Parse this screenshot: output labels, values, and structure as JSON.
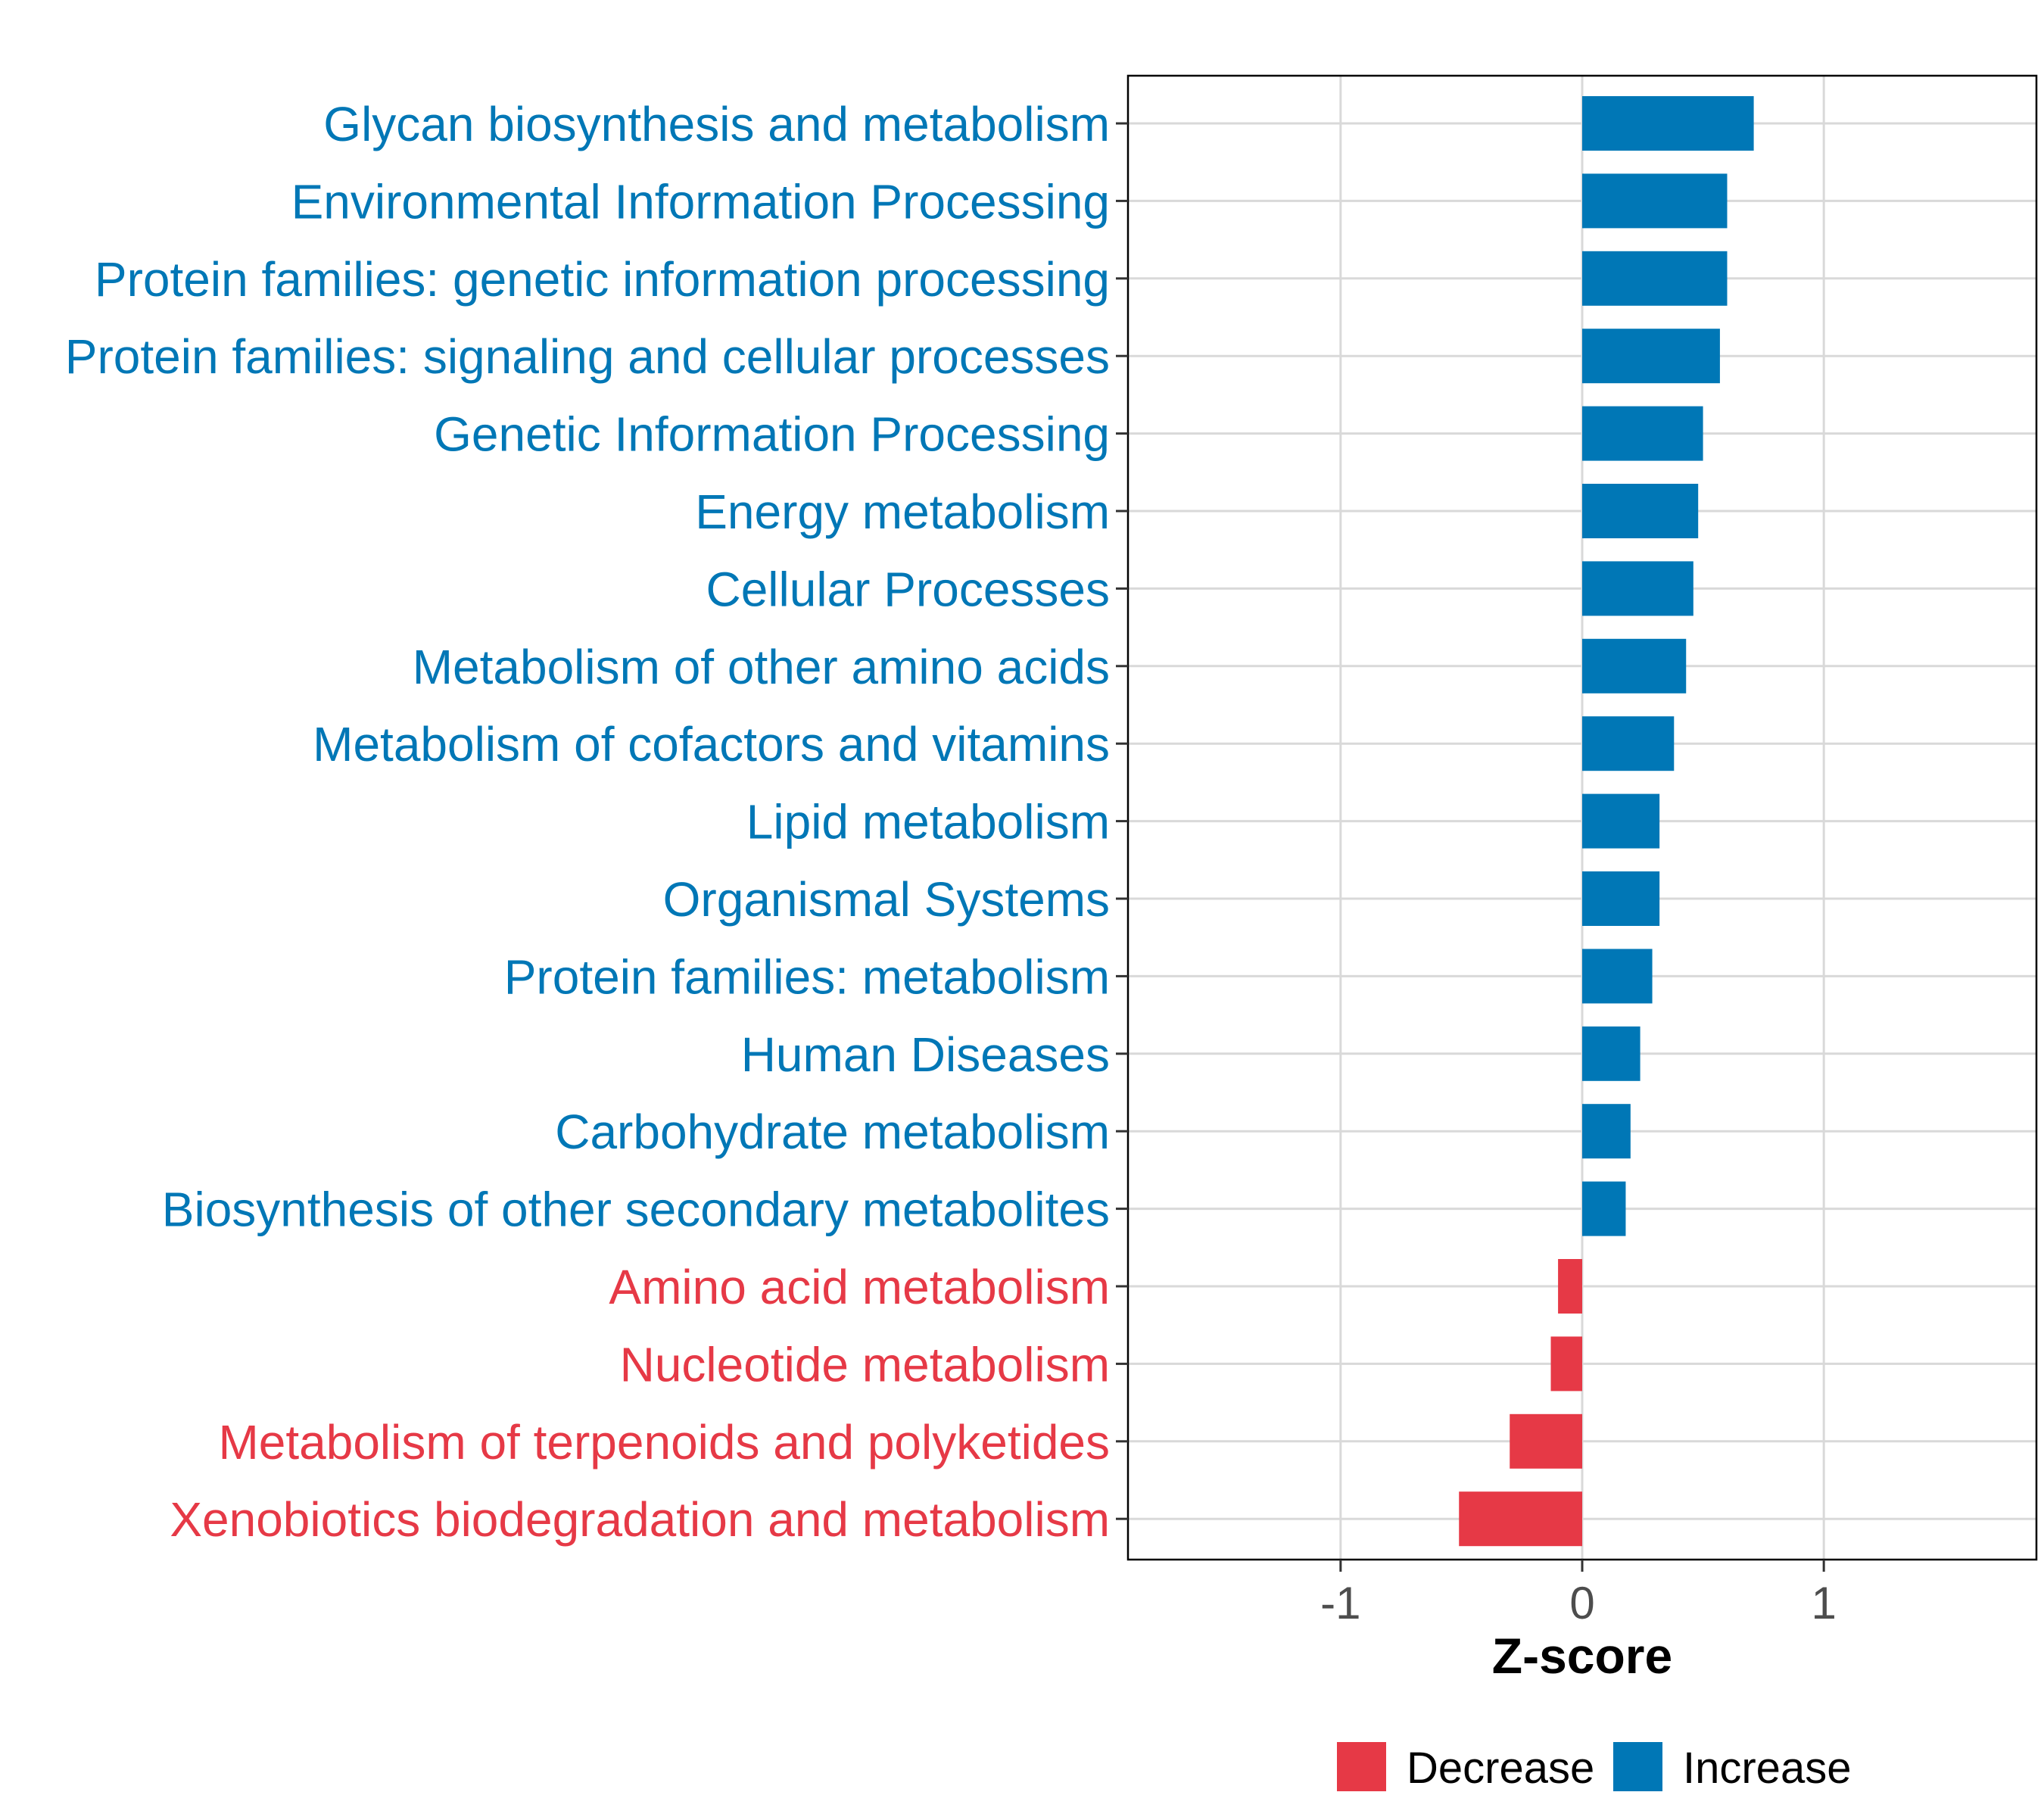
{
  "chart_data": {
    "type": "bar",
    "orientation": "horizontal",
    "title": "",
    "xlabel": "Z-score",
    "ylabel": "",
    "xlim": [
      -1.88,
      1.88
    ],
    "xticks": [
      -1,
      0,
      1
    ],
    "xtick_labels": [
      "-1",
      "0",
      "1"
    ],
    "grid": true,
    "legend_position": "bottom",
    "colors": {
      "Decrease": "#E63946",
      "Increase": "#0077B6",
      "grid": "#D9D9D9",
      "axis": "#000000",
      "tick_text": "#4D4D4D"
    },
    "categories": [
      "Glycan biosynthesis and metabolism",
      "Environmental Information Processing",
      "Protein families: genetic information processing",
      "Protein families: signaling and cellular processes",
      "Genetic Information Processing",
      "Energy metabolism",
      "Cellular Processes",
      "Metabolism of other amino acids",
      "Metabolism of cofactors and vitamins",
      "Lipid metabolism",
      "Organismal Systems",
      "Protein families: metabolism",
      "Human Diseases",
      "Carbohydrate metabolism",
      "Biosynthesis of other secondary metabolites",
      "Amino acid metabolism",
      "Nucleotide metabolism",
      "Metabolism of terpenoids and polyketides",
      "Xenobiotics biodegradation and metabolism"
    ],
    "values": [
      0.71,
      0.6,
      0.6,
      0.57,
      0.5,
      0.48,
      0.46,
      0.43,
      0.38,
      0.32,
      0.32,
      0.29,
      0.24,
      0.2,
      0.18,
      -0.1,
      -0.13,
      -0.3,
      -0.51
    ],
    "groups": [
      "Increase",
      "Increase",
      "Increase",
      "Increase",
      "Increase",
      "Increase",
      "Increase",
      "Increase",
      "Increase",
      "Increase",
      "Increase",
      "Increase",
      "Increase",
      "Increase",
      "Increase",
      "Decrease",
      "Decrease",
      "Decrease",
      "Decrease"
    ],
    "legend": [
      {
        "label": "Decrease",
        "color": "#E63946"
      },
      {
        "label": "Increase",
        "color": "#0077B6"
      }
    ]
  }
}
